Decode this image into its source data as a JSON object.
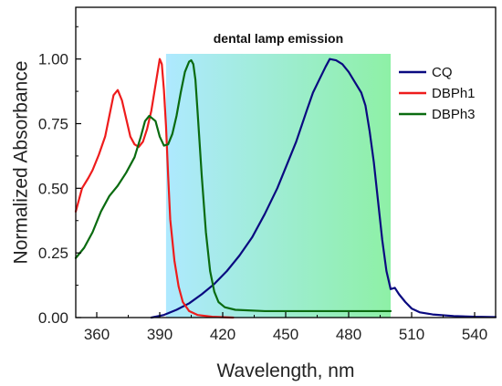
{
  "chart_data": {
    "type": "line",
    "title": "",
    "xlabel": "Wavelength, nm",
    "ylabel": "Normalized Absorbance",
    "xlim": [
      350,
      550
    ],
    "ylim": [
      0,
      1.2
    ],
    "x_ticks": [
      360,
      390,
      420,
      450,
      480,
      510,
      540
    ],
    "y_ticks": [
      0.0,
      0.25,
      0.5,
      0.75,
      1.0
    ],
    "x_tick_labels": [
      "360",
      "390",
      "420",
      "450",
      "480",
      "510",
      "540"
    ],
    "y_tick_labels": [
      "0.00",
      "0.25",
      "0.50",
      "0.75",
      "1.00"
    ],
    "grid": false,
    "legend_position": "top-right",
    "annotation": {
      "text": "dental lamp emission",
      "x_range": [
        393,
        500
      ],
      "y_top": 1.02,
      "colors": [
        "#aee9ff",
        "#8ef0a6"
      ]
    },
    "series": [
      {
        "name": "CQ",
        "color": "#0a0a80",
        "points": [
          [
            386,
            0.0
          ],
          [
            392,
            0.01
          ],
          [
            398,
            0.03
          ],
          [
            404,
            0.055
          ],
          [
            410,
            0.09
          ],
          [
            416,
            0.13
          ],
          [
            422,
            0.18
          ],
          [
            428,
            0.24
          ],
          [
            434,
            0.31
          ],
          [
            440,
            0.4
          ],
          [
            446,
            0.5
          ],
          [
            450,
            0.58
          ],
          [
            455,
            0.68
          ],
          [
            460,
            0.8
          ],
          [
            463,
            0.87
          ],
          [
            466,
            0.92
          ],
          [
            469,
            0.97
          ],
          [
            471,
            1.0
          ],
          [
            474,
            0.995
          ],
          [
            477,
            0.98
          ],
          [
            480,
            0.95
          ],
          [
            483,
            0.91
          ],
          [
            486,
            0.87
          ],
          [
            488,
            0.82
          ],
          [
            490,
            0.72
          ],
          [
            492,
            0.6
          ],
          [
            494,
            0.45
          ],
          [
            496,
            0.3
          ],
          [
            498,
            0.18
          ],
          [
            500,
            0.11
          ],
          [
            502,
            0.115
          ],
          [
            504,
            0.09
          ],
          [
            507,
            0.06
          ],
          [
            510,
            0.035
          ],
          [
            514,
            0.02
          ],
          [
            520,
            0.012
          ],
          [
            530,
            0.006
          ],
          [
            540,
            0.003
          ],
          [
            550,
            0.002
          ]
        ]
      },
      {
        "name": "DBPh1",
        "color": "#ee1c1c",
        "points": [
          [
            350,
            0.41
          ],
          [
            353,
            0.5
          ],
          [
            356,
            0.54
          ],
          [
            358,
            0.57
          ],
          [
            361,
            0.63
          ],
          [
            364,
            0.7
          ],
          [
            366,
            0.78
          ],
          [
            368,
            0.86
          ],
          [
            370,
            0.88
          ],
          [
            372,
            0.84
          ],
          [
            374,
            0.77
          ],
          [
            376,
            0.7
          ],
          [
            378,
            0.67
          ],
          [
            380,
            0.66
          ],
          [
            382,
            0.68
          ],
          [
            384,
            0.73
          ],
          [
            386,
            0.8
          ],
          [
            388,
            0.9
          ],
          [
            390,
            1.0
          ],
          [
            391,
            0.98
          ],
          [
            392,
            0.88
          ],
          [
            393,
            0.74
          ],
          [
            394,
            0.55
          ],
          [
            395,
            0.38
          ],
          [
            397,
            0.22
          ],
          [
            399,
            0.12
          ],
          [
            401,
            0.06
          ],
          [
            404,
            0.025
          ],
          [
            408,
            0.01
          ],
          [
            415,
            0.003
          ],
          [
            425,
            0.0
          ]
        ]
      },
      {
        "name": "DBPh3",
        "color": "#0a6b10",
        "points": [
          [
            350,
            0.23
          ],
          [
            354,
            0.27
          ],
          [
            358,
            0.33
          ],
          [
            362,
            0.41
          ],
          [
            366,
            0.47
          ],
          [
            370,
            0.51
          ],
          [
            374,
            0.56
          ],
          [
            378,
            0.62
          ],
          [
            381,
            0.7
          ],
          [
            383,
            0.76
          ],
          [
            385,
            0.78
          ],
          [
            388,
            0.76
          ],
          [
            390,
            0.7
          ],
          [
            392,
            0.665
          ],
          [
            394,
            0.67
          ],
          [
            396,
            0.71
          ],
          [
            398,
            0.78
          ],
          [
            400,
            0.87
          ],
          [
            402,
            0.95
          ],
          [
            404,
            0.99
          ],
          [
            405,
            0.995
          ],
          [
            406,
            0.98
          ],
          [
            407,
            0.92
          ],
          [
            408,
            0.8
          ],
          [
            410,
            0.55
          ],
          [
            412,
            0.33
          ],
          [
            414,
            0.18
          ],
          [
            416,
            0.1
          ],
          [
            418,
            0.06
          ],
          [
            421,
            0.04
          ],
          [
            426,
            0.03
          ],
          [
            440,
            0.025
          ],
          [
            470,
            0.025
          ],
          [
            500,
            0.025
          ]
        ]
      }
    ]
  }
}
